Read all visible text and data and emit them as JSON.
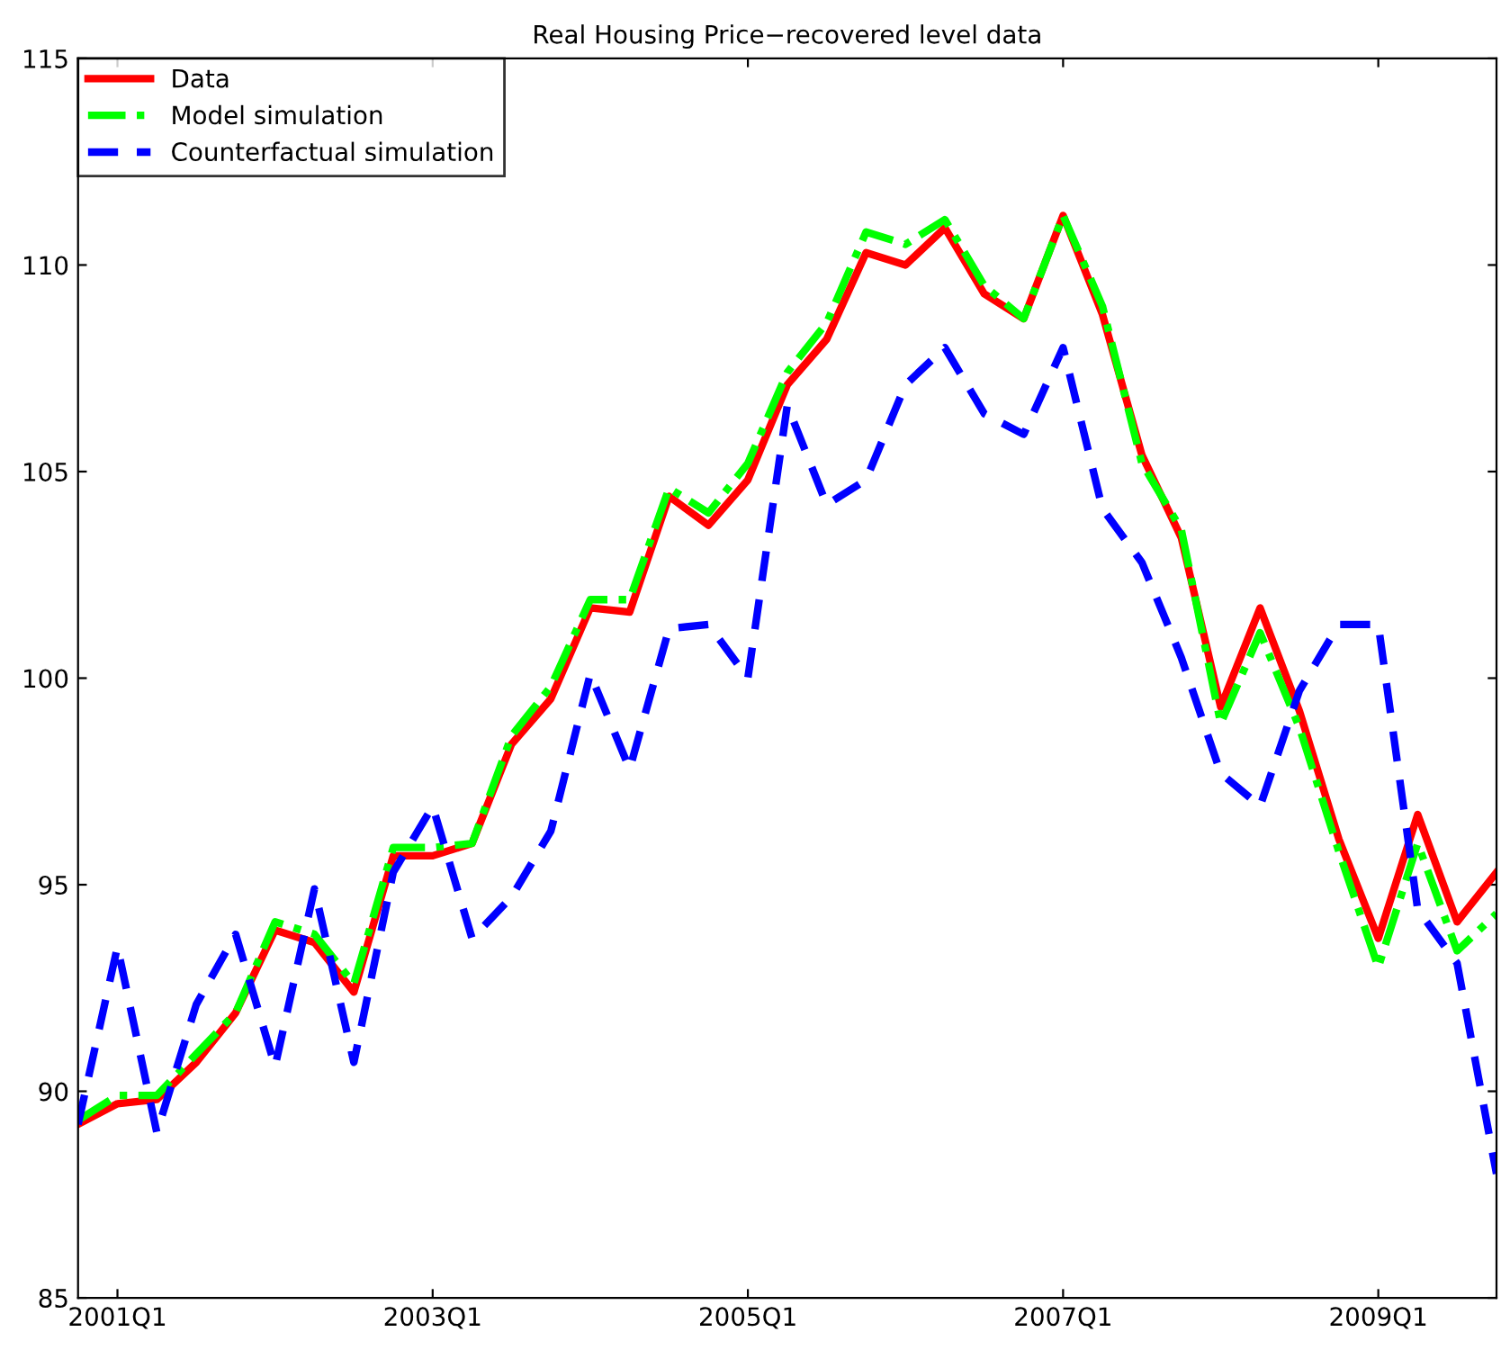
{
  "chart_data": {
    "type": "line",
    "title": "Real Housing Price−recovered level data",
    "categories": [
      null,
      "2001Q1",
      null,
      null,
      null,
      null,
      null,
      null,
      null,
      "2003Q1",
      null,
      null,
      null,
      null,
      null,
      null,
      null,
      "2005Q1",
      null,
      null,
      null,
      null,
      null,
      null,
      null,
      "2007Q1",
      null,
      null,
      null,
      null,
      null,
      null,
      null,
      "2009Q1",
      null,
      null,
      null
    ],
    "series": [
      {
        "name": "Data",
        "color": "#ff0000",
        "line_style": "solid",
        "values": [
          89.2,
          89.7,
          89.8,
          90.7,
          91.9,
          93.9,
          93.6,
          92.4,
          95.7,
          95.7,
          96.0,
          98.4,
          99.5,
          101.7,
          101.6,
          104.4,
          103.7,
          104.8,
          107.1,
          108.2,
          110.3,
          110.0,
          110.9,
          109.3,
          108.7,
          111.2,
          108.8,
          105.4,
          103.4,
          99.3,
          101.7,
          99.2,
          96.1,
          93.7,
          96.7,
          94.1,
          95.3
        ]
      },
      {
        "name": "Model simulation",
        "color": "#00ff00",
        "line_style": "dashdot",
        "values": [
          89.3,
          89.9,
          89.9,
          90.9,
          91.9,
          94.1,
          93.8,
          92.6,
          95.9,
          95.9,
          96.0,
          98.6,
          99.8,
          101.9,
          101.9,
          104.6,
          104.0,
          105.2,
          107.4,
          108.6,
          110.8,
          110.5,
          111.1,
          109.5,
          108.7,
          111.2,
          109.0,
          105.2,
          103.6,
          98.9,
          101.1,
          98.8,
          95.8,
          93.0,
          96.0,
          93.4,
          94.3
        ]
      },
      {
        "name": "Counterfactual simulation",
        "color": "#0000ff",
        "line_style": "dashed",
        "values": [
          89.2,
          93.5,
          89.0,
          92.1,
          93.8,
          90.6,
          94.9,
          90.7,
          95.3,
          96.9,
          93.7,
          94.7,
          96.3,
          100.1,
          97.8,
          101.2,
          101.3,
          100.0,
          106.6,
          104.2,
          104.8,
          107.1,
          108.0,
          106.4,
          105.9,
          108.0,
          104.1,
          102.8,
          100.5,
          97.7,
          96.9,
          99.7,
          101.3,
          101.3,
          94.4,
          93.1,
          88.0
        ]
      }
    ],
    "ylim": [
      85,
      115
    ],
    "yticks": [
      85,
      90,
      95,
      100,
      105,
      110,
      115
    ],
    "grid": false,
    "legend": "top left",
    "marker": "none"
  }
}
